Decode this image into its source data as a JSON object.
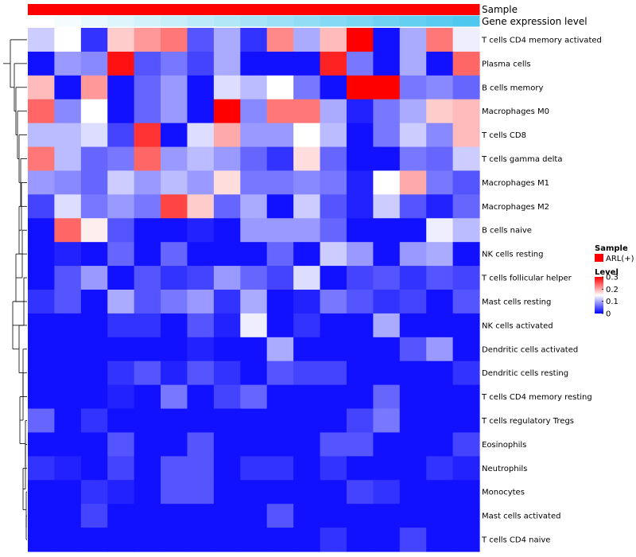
{
  "chart_data": {
    "type": "heatmap",
    "title": "",
    "column_annotations": [
      {
        "name": "Sample",
        "color": "#ff0000"
      },
      {
        "name": "Gene expression level",
        "low_color": "#ffffff",
        "high_color": "#4fc8f0"
      }
    ],
    "rows": [
      "T cells CD4 memory activated",
      "Plasma cells",
      "B cells memory",
      "Macrophages M0",
      "T cells CD8",
      "T cells gamma delta",
      "Macrophages M1",
      "Macrophages M2",
      "B cells naive",
      "NK cells resting",
      "T cells follicular helper",
      "Mast cells resting",
      "NK cells activated",
      "Dendritic cells activated",
      "Dendritic cells resting",
      "T cells CD4 memory resting",
      "T cells regulatory  Tregs",
      "Eosinophils",
      "Neutrophils",
      "Monocytes",
      "Mast cells activated",
      "T cells CD4 naive"
    ],
    "n_columns": 17,
    "values": [
      [
        0.12,
        0.15,
        0.03,
        0.18,
        0.21,
        0.23,
        0.05,
        0.1,
        0.03,
        0.22,
        0.1,
        0.19,
        0.3,
        0.01,
        0.1,
        0.23,
        0.14
      ],
      [
        0.01,
        0.09,
        0.08,
        0.29,
        0.05,
        0.07,
        0.04,
        0.1,
        0.01,
        0.01,
        0.01,
        0.28,
        0.07,
        0.01,
        0.1,
        0.01,
        0.24
      ],
      [
        0.19,
        0.01,
        0.21,
        0.01,
        0.06,
        0.09,
        0.01,
        0.13,
        0.11,
        0.15,
        0.07,
        0.01,
        0.3,
        0.3,
        0.07,
        0.08,
        0.06
      ],
      [
        0.24,
        0.08,
        0.15,
        0.01,
        0.06,
        0.09,
        0.01,
        0.3,
        0.08,
        0.23,
        0.23,
        0.1,
        0.02,
        0.07,
        0.1,
        0.18,
        0.19
      ],
      [
        0.11,
        0.11,
        0.13,
        0.04,
        0.27,
        0.01,
        0.13,
        0.2,
        0.09,
        0.09,
        0.15,
        0.11,
        0.01,
        0.07,
        0.12,
        0.08,
        0.19
      ],
      [
        0.23,
        0.11,
        0.06,
        0.07,
        0.24,
        0.09,
        0.11,
        0.09,
        0.06,
        0.03,
        0.17,
        0.06,
        0.01,
        0.01,
        0.07,
        0.06,
        0.12
      ],
      [
        0.09,
        0.08,
        0.06,
        0.12,
        0.09,
        0.11,
        0.09,
        0.17,
        0.07,
        0.07,
        0.08,
        0.07,
        0.02,
        0.15,
        0.2,
        0.07,
        0.05
      ],
      [
        0.04,
        0.13,
        0.07,
        0.09,
        0.07,
        0.26,
        0.18,
        0.06,
        0.1,
        0.01,
        0.12,
        0.05,
        0.02,
        0.12,
        0.05,
        0.02,
        0.06
      ],
      [
        0.01,
        0.24,
        0.16,
        0.05,
        0.01,
        0.01,
        0.02,
        0.01,
        0.09,
        0.09,
        0.09,
        0.06,
        0.01,
        0.01,
        0.01,
        0.14,
        0.11
      ],
      [
        0.01,
        0.02,
        0.01,
        0.06,
        0.01,
        0.06,
        0.01,
        0.01,
        0.01,
        0.06,
        0.01,
        0.12,
        0.09,
        0.01,
        0.09,
        0.1,
        0.01
      ],
      [
        0.01,
        0.05,
        0.09,
        0.01,
        0.05,
        0.03,
        0.04,
        0.09,
        0.06,
        0.04,
        0.13,
        0.01,
        0.04,
        0.05,
        0.03,
        0.05,
        0.04
      ],
      [
        0.03,
        0.05,
        0.01,
        0.1,
        0.05,
        0.07,
        0.09,
        0.03,
        0.1,
        0.01,
        0.02,
        0.07,
        0.05,
        0.03,
        0.04,
        0.01,
        0.05
      ],
      [
        0.01,
        0.01,
        0.01,
        0.03,
        0.03,
        0.01,
        0.05,
        0.02,
        0.14,
        0.01,
        0.03,
        0.01,
        0.01,
        0.1,
        0.01,
        0.01,
        0.01
      ],
      [
        0.01,
        0.01,
        0.01,
        0.01,
        0.01,
        0.01,
        0.02,
        0.01,
        0.01,
        0.1,
        0.01,
        0.01,
        0.01,
        0.01,
        0.05,
        0.09,
        0.01
      ],
      [
        0.01,
        0.01,
        0.01,
        0.03,
        0.05,
        0.02,
        0.05,
        0.03,
        0.01,
        0.05,
        0.04,
        0.04,
        0.01,
        0.01,
        0.01,
        0.01,
        0.03
      ],
      [
        0.01,
        0.01,
        0.01,
        0.02,
        0.01,
        0.07,
        0.01,
        0.04,
        0.06,
        0.01,
        0.01,
        0.01,
        0.01,
        0.06,
        0.01,
        0.01,
        0.01
      ],
      [
        0.06,
        0.01,
        0.03,
        0.01,
        0.01,
        0.01,
        0.01,
        0.01,
        0.01,
        0.01,
        0.01,
        0.01,
        0.04,
        0.07,
        0.01,
        0.01,
        0.01
      ],
      [
        0.01,
        0.01,
        0.01,
        0.05,
        0.01,
        0.01,
        0.05,
        0.01,
        0.01,
        0.01,
        0.01,
        0.05,
        0.05,
        0.01,
        0.01,
        0.01,
        0.04
      ],
      [
        0.03,
        0.02,
        0.01,
        0.04,
        0.01,
        0.05,
        0.05,
        0.01,
        0.03,
        0.03,
        0.01,
        0.03,
        0.01,
        0.01,
        0.01,
        0.03,
        0.02
      ],
      [
        0.01,
        0.01,
        0.03,
        0.02,
        0.01,
        0.05,
        0.05,
        0.01,
        0.01,
        0.01,
        0.01,
        0.01,
        0.04,
        0.03,
        0.01,
        0.01,
        0.01
      ],
      [
        0.01,
        0.01,
        0.04,
        0.01,
        0.01,
        0.01,
        0.01,
        0.01,
        0.01,
        0.05,
        0.01,
        0.01,
        0.01,
        0.01,
        0.01,
        0.01,
        0.01
      ],
      [
        0.01,
        0.01,
        0.01,
        0.01,
        0.01,
        0.01,
        0.01,
        0.01,
        0.01,
        0.01,
        0.01,
        0.03,
        0.01,
        0.01,
        0.04,
        0.01,
        0.01
      ]
    ],
    "color_scale": {
      "low": "#0000ff",
      "mid": "#ffffff",
      "high": "#ff0000",
      "min": 0,
      "mid_value": 0.15,
      "max": 0.3
    },
    "legend": {
      "sample_title": "Sample",
      "sample_entries": [
        {
          "label": "ARL(+)",
          "color": "#ff0000"
        }
      ],
      "level_title": "Level",
      "level_ticks": [
        "0.3",
        "0.2",
        "0.1",
        "0"
      ]
    }
  }
}
